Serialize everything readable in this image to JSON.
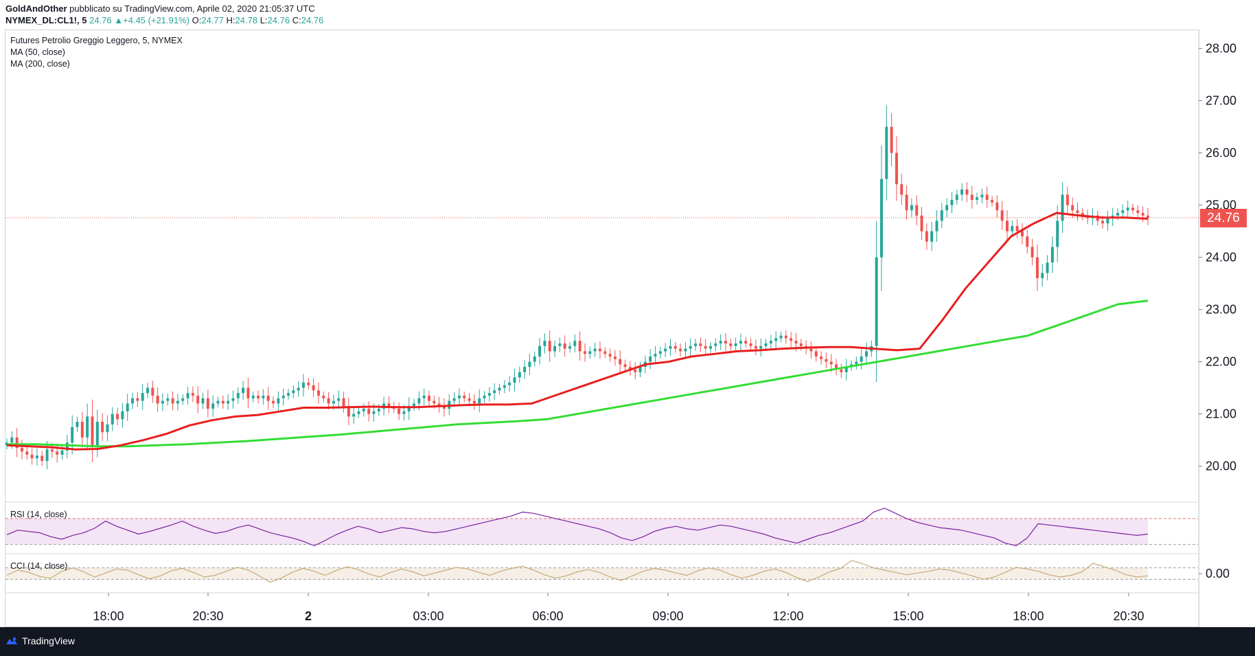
{
  "header": {
    "author": "GoldAndOther",
    "published": "pubblicato su TradingView.com, Aprile 02, 2020 21:05:37 UTC",
    "symbol": "NYMEX_DL:CL1!, 5",
    "last": "24.76",
    "change": "+4.45 (+21.91%)",
    "o_label": "O:",
    "o_value": "24.77",
    "h_label": "H:",
    "h_value": "24.78",
    "l_label": "L:",
    "l_value": "24.76",
    "c_label": "C:",
    "c_value": "24.76"
  },
  "legend": {
    "main": "Futures Petrolio Greggio Leggero, 5, NYMEX",
    "ma50": "MA (50, close)",
    "ma200": "MA (200, close)",
    "rsi": "RSI (14, close)",
    "cci": "CCI (14, close)"
  },
  "footer": {
    "brand": "TradingView"
  },
  "colors": {
    "up": "#26a69a",
    "down": "#ef5350",
    "ma50": "#e91e1e",
    "ma200": "#33dd33",
    "rsi_line": "#7b1fa2",
    "rsi_bg": "#f3e5f5",
    "cci_line": "#c8a978",
    "cci_bg": "#f5efe6",
    "last": "#ef5350"
  },
  "chart_data": [
    {
      "type": "candlestick",
      "name": "CL1! 5m",
      "x_ticks": [
        "18:00",
        "20:30",
        "2",
        "03:00",
        "06:00",
        "09:00",
        "12:00",
        "15:00",
        "18:00",
        "20:30"
      ],
      "y_ticks": [
        "20.00",
        "21.00",
        "22.00",
        "23.00",
        "24.00",
        "25.00",
        "26.00",
        "27.00",
        "28.00"
      ],
      "ylim": [
        19.35,
        28.35
      ],
      "last_price": "24.76",
      "close": [
        20.45,
        20.55,
        20.35,
        20.28,
        20.22,
        20.15,
        20.2,
        20.1,
        20.32,
        20.28,
        20.22,
        20.3,
        20.45,
        20.75,
        20.85,
        20.55,
        20.95,
        20.4,
        20.85,
        20.65,
        20.8,
        21.0,
        20.9,
        21.05,
        21.2,
        21.3,
        21.25,
        21.4,
        21.5,
        21.35,
        21.2,
        21.25,
        21.3,
        21.2,
        21.25,
        21.3,
        21.4,
        21.35,
        21.2,
        21.3,
        21.1,
        21.2,
        21.25,
        21.2,
        21.25,
        21.3,
        21.4,
        21.5,
        21.3,
        21.35,
        21.3,
        21.35,
        21.25,
        21.2,
        21.3,
        21.35,
        21.4,
        21.45,
        21.5,
        21.6,
        21.55,
        21.45,
        21.35,
        21.3,
        21.2,
        21.25,
        21.3,
        21.15,
        20.95,
        21.0,
        21.05,
        21.1,
        21.0,
        21.05,
        21.1,
        21.2,
        21.15,
        21.1,
        21.0,
        21.05,
        21.15,
        21.2,
        21.3,
        21.35,
        21.25,
        21.2,
        21.15,
        21.1,
        21.25,
        21.3,
        21.35,
        21.3,
        21.25,
        21.2,
        21.3,
        21.35,
        21.4,
        21.45,
        21.5,
        21.55,
        21.6,
        21.7,
        21.8,
        21.9,
        22.0,
        22.1,
        22.3,
        22.4,
        22.2,
        22.3,
        22.35,
        22.25,
        22.3,
        22.4,
        22.2,
        22.15,
        22.2,
        22.25,
        22.2,
        22.15,
        22.1,
        22.05,
        21.95,
        21.9,
        21.85,
        21.8,
        21.9,
        22.0,
        22.1,
        22.15,
        22.2,
        22.25,
        22.3,
        22.25,
        22.2,
        22.25,
        22.3,
        22.35,
        22.3,
        22.25,
        22.3,
        22.35,
        22.4,
        22.35,
        22.3,
        22.35,
        22.4,
        22.35,
        22.3,
        22.25,
        22.3,
        22.35,
        22.4,
        22.45,
        22.5,
        22.45,
        22.4,
        22.35,
        22.3,
        22.25,
        22.2,
        22.1,
        22.05,
        22.0,
        21.95,
        21.85,
        21.8,
        21.9,
        21.95,
        22.0,
        22.1,
        22.2,
        22.3,
        24.0,
        25.5,
        26.5,
        26.0,
        25.4,
        25.2,
        24.9,
        25.0,
        24.8,
        24.5,
        24.3,
        24.5,
        24.7,
        24.9,
        25.0,
        25.1,
        25.2,
        25.3,
        25.2,
        25.1,
        25.15,
        25.2,
        25.1,
        25.05,
        24.9,
        24.7,
        24.5,
        24.6,
        24.5,
        24.4,
        24.2,
        24.0,
        23.6,
        23.7,
        23.9,
        24.2,
        24.7,
        25.2,
        25.0,
        24.9,
        24.85,
        24.8,
        24.75,
        24.8,
        24.7,
        24.65,
        24.75,
        24.8,
        24.85,
        24.9,
        24.95,
        24.9,
        24.85,
        24.8,
        24.76
      ],
      "ma50": [
        20.4,
        20.38,
        20.36,
        20.32,
        20.33,
        20.4,
        20.5,
        20.62,
        20.78,
        20.88,
        20.95,
        20.98,
        21.05,
        21.12,
        21.12,
        21.13,
        21.14,
        21.13,
        21.13,
        21.15,
        21.17,
        21.18,
        21.18,
        21.2,
        21.35,
        21.5,
        21.65,
        21.8,
        21.95,
        22.0,
        22.1,
        22.15,
        22.2,
        22.22,
        22.25,
        22.27,
        22.28,
        22.28,
        22.25,
        22.22,
        22.25,
        22.8,
        23.4,
        23.9,
        24.4,
        24.65,
        24.85,
        24.8,
        24.76,
        24.76,
        24.74
      ],
      "ma200": [
        20.42,
        20.42,
        20.4,
        20.38,
        20.38,
        20.4,
        20.42,
        20.45,
        20.48,
        20.52,
        20.56,
        20.6,
        20.65,
        20.7,
        20.75,
        20.8,
        20.83,
        20.86,
        20.9,
        21.0,
        21.1,
        21.2,
        21.3,
        21.4,
        21.5,
        21.6,
        21.7,
        21.8,
        21.9,
        22.0,
        22.1,
        22.2,
        22.3,
        22.4,
        22.5,
        22.7,
        22.9,
        23.1,
        23.17
      ]
    },
    {
      "type": "line",
      "name": "RSI (14, close)",
      "bands": [
        70,
        30
      ],
      "ylim": [
        20,
        90
      ],
      "values": [
        45,
        52,
        50,
        48,
        42,
        38,
        44,
        48,
        55,
        66,
        58,
        52,
        46,
        50,
        55,
        60,
        66,
        58,
        52,
        47,
        50,
        56,
        60,
        54,
        48,
        44,
        40,
        35,
        28,
        36,
        45,
        52,
        58,
        54,
        48,
        52,
        56,
        54,
        50,
        48,
        50,
        54,
        58,
        62,
        66,
        70,
        74,
        80,
        78,
        74,
        70,
        66,
        62,
        58,
        54,
        48,
        40,
        36,
        42,
        50,
        55,
        58,
        54,
        52,
        56,
        60,
        58,
        54,
        50,
        46,
        40,
        36,
        32,
        38,
        44,
        48,
        54,
        60,
        66,
        80,
        86,
        78,
        70,
        64,
        60,
        56,
        54,
        52,
        48,
        44,
        40,
        32,
        28,
        40,
        62,
        60,
        58,
        56,
        54,
        52,
        50,
        48,
        46,
        44,
        46
      ]
    },
    {
      "type": "line",
      "name": "CCI (14, close)",
      "y_ticks": [
        "0.00"
      ],
      "bands": [
        100,
        -100
      ],
      "ylim": [
        -300,
        300
      ],
      "values": [
        -30,
        60,
        20,
        -50,
        -80,
        40,
        100,
        30,
        -60,
        10,
        80,
        60,
        -20,
        -90,
        -40,
        50,
        90,
        20,
        -60,
        -30,
        40,
        110,
        60,
        -40,
        -150,
        -80,
        20,
        90,
        40,
        -30,
        50,
        120,
        70,
        -10,
        -60,
        20,
        80,
        30,
        -40,
        10,
        60,
        110,
        80,
        20,
        -30,
        40,
        90,
        130,
        60,
        -20,
        -80,
        -40,
        30,
        70,
        20,
        -60,
        -120,
        -40,
        40,
        90,
        60,
        10,
        -30,
        50,
        100,
        60,
        -20,
        -80,
        -30,
        40,
        80,
        20,
        -70,
        -140,
        -60,
        30,
        90,
        230,
        170,
        100,
        60,
        20,
        -20,
        10,
        40,
        80,
        60,
        10,
        -40,
        -100,
        -60,
        20,
        110,
        80,
        40,
        -20,
        -60,
        -30,
        30,
        180,
        120,
        60,
        -20,
        -60,
        -40
      ]
    }
  ]
}
